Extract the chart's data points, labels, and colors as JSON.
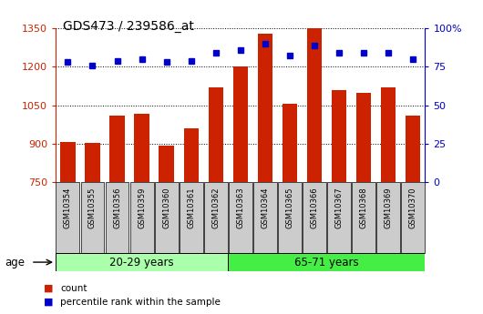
{
  "title": "GDS473 / 239586_at",
  "samples": [
    "GSM10354",
    "GSM10355",
    "GSM10356",
    "GSM10359",
    "GSM10360",
    "GSM10361",
    "GSM10362",
    "GSM10363",
    "GSM10364",
    "GSM10365",
    "GSM10366",
    "GSM10367",
    "GSM10368",
    "GSM10369",
    "GSM10370"
  ],
  "counts": [
    907,
    902,
    1010,
    1017,
    892,
    960,
    1118,
    1200,
    1328,
    1057,
    1349,
    1110,
    1098,
    1118,
    1010
  ],
  "percentile_ranks": [
    78,
    76,
    79,
    80,
    78,
    79,
    84,
    86,
    90,
    82,
    89,
    84,
    84,
    84,
    80
  ],
  "group1_label": "20-29 years",
  "group2_label": "65-71 years",
  "group1_count": 7,
  "group2_count": 8,
  "ylim_left": [
    750,
    1350
  ],
  "ylim_right": [
    0,
    100
  ],
  "yticks_left": [
    750,
    900,
    1050,
    1200,
    1350
  ],
  "yticks_right": [
    0,
    25,
    50,
    75,
    100
  ],
  "bar_color": "#cc2200",
  "dot_color": "#0000cc",
  "group1_bg": "#aaffaa",
  "group2_bg": "#44ee44",
  "tick_bg": "#cccccc",
  "plot_bg": "#ffffff",
  "grid_color": "#000000",
  "title_fontsize": 10,
  "tick_fontsize": 8,
  "label_fontsize": 8
}
